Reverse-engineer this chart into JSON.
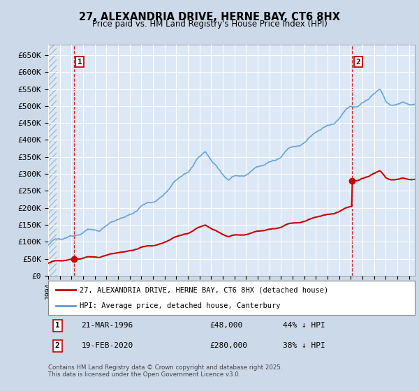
{
  "title": "27, ALEXANDRIA DRIVE, HERNE BAY, CT6 8HX",
  "subtitle": "Price paid vs. HM Land Registry's House Price Index (HPI)",
  "ylim": [
    0,
    680000
  ],
  "yticks": [
    0,
    50000,
    100000,
    150000,
    200000,
    250000,
    300000,
    350000,
    400000,
    450000,
    500000,
    550000,
    600000,
    650000
  ],
  "ytick_labels": [
    "£0",
    "£50K",
    "£100K",
    "£150K",
    "£200K",
    "£250K",
    "£300K",
    "£350K",
    "£400K",
    "£450K",
    "£500K",
    "£550K",
    "£600K",
    "£650K"
  ],
  "hpi_color": "#5b9bd5",
  "price_color": "#cc0000",
  "marker1_date": 1996.21,
  "marker1_price": 48000,
  "marker2_date": 2020.12,
  "marker2_price": 280000,
  "legend_line1": "27, ALEXANDRIA DRIVE, HERNE BAY, CT6 8HX (detached house)",
  "legend_line2": "HPI: Average price, detached house, Canterbury",
  "table_row1": [
    "1",
    "21-MAR-1996",
    "£48,000",
    "44% ↓ HPI"
  ],
  "table_row2": [
    "2",
    "19-FEB-2020",
    "£280,000",
    "38% ↓ HPI"
  ],
  "footer": "Contains HM Land Registry data © Crown copyright and database right 2025.\nThis data is licensed under the Open Government Licence v3.0.",
  "bg_color": "#ccd9e8",
  "plot_bg_color": "#dce8f5",
  "grid_color": "#ffffff",
  "xlim_start": 1994,
  "xlim_end": 2025.5
}
